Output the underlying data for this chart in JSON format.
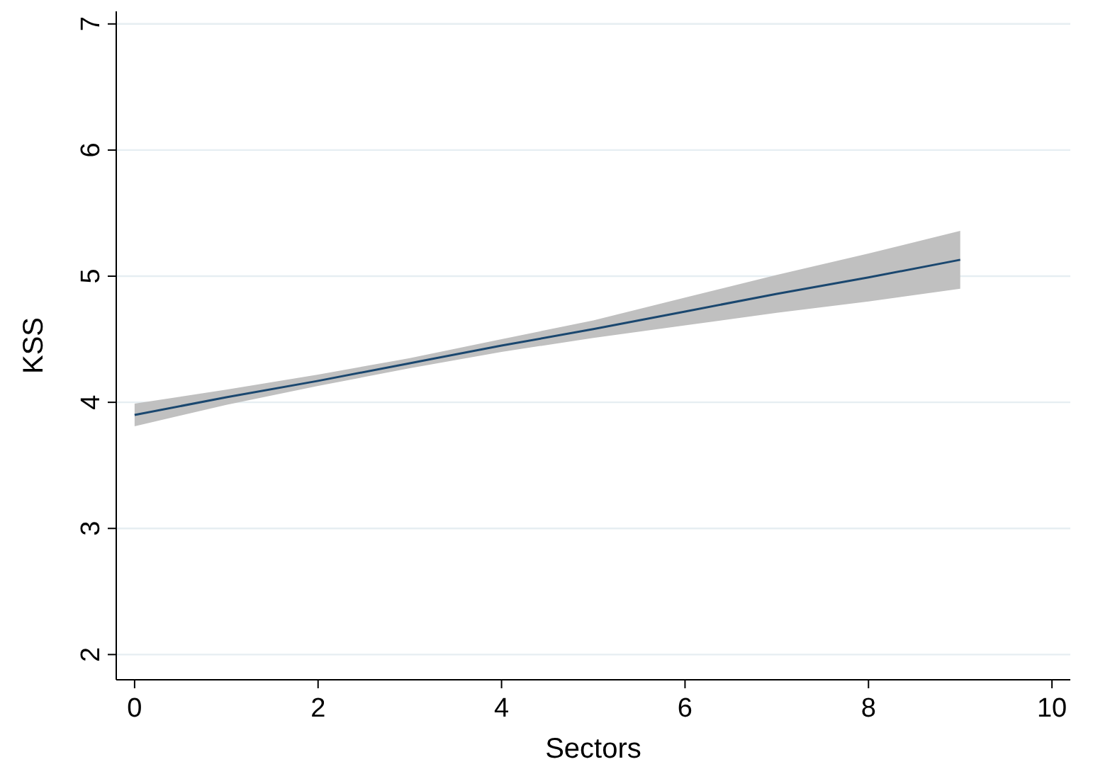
{
  "chart_data": {
    "type": "line",
    "xlabel": "Sectors",
    "ylabel": "KSS",
    "x": [
      0,
      1,
      2,
      3,
      4,
      5,
      6,
      7,
      8,
      9
    ],
    "series": [
      {
        "color": "#1a476f",
        "values": [
          3.9,
          4.04,
          4.17,
          4.31,
          4.45,
          4.58,
          4.72,
          4.86,
          4.99,
          5.13
        ],
        "lower": [
          3.81,
          3.98,
          4.13,
          4.27,
          4.4,
          4.51,
          4.61,
          4.71,
          4.8,
          4.9
        ],
        "upper": [
          3.99,
          4.1,
          4.22,
          4.35,
          4.5,
          4.65,
          4.83,
          5.01,
          5.18,
          5.36
        ]
      }
    ],
    "xlim": [
      -0.2,
      10.2
    ],
    "xticks": [
      0,
      2,
      4,
      6,
      8,
      10
    ],
    "ylim": [
      1.8,
      7.1
    ],
    "yticks": [
      2,
      3,
      4,
      5,
      6,
      7
    ],
    "grid": "y",
    "marker": "none",
    "line_style": "solid"
  }
}
